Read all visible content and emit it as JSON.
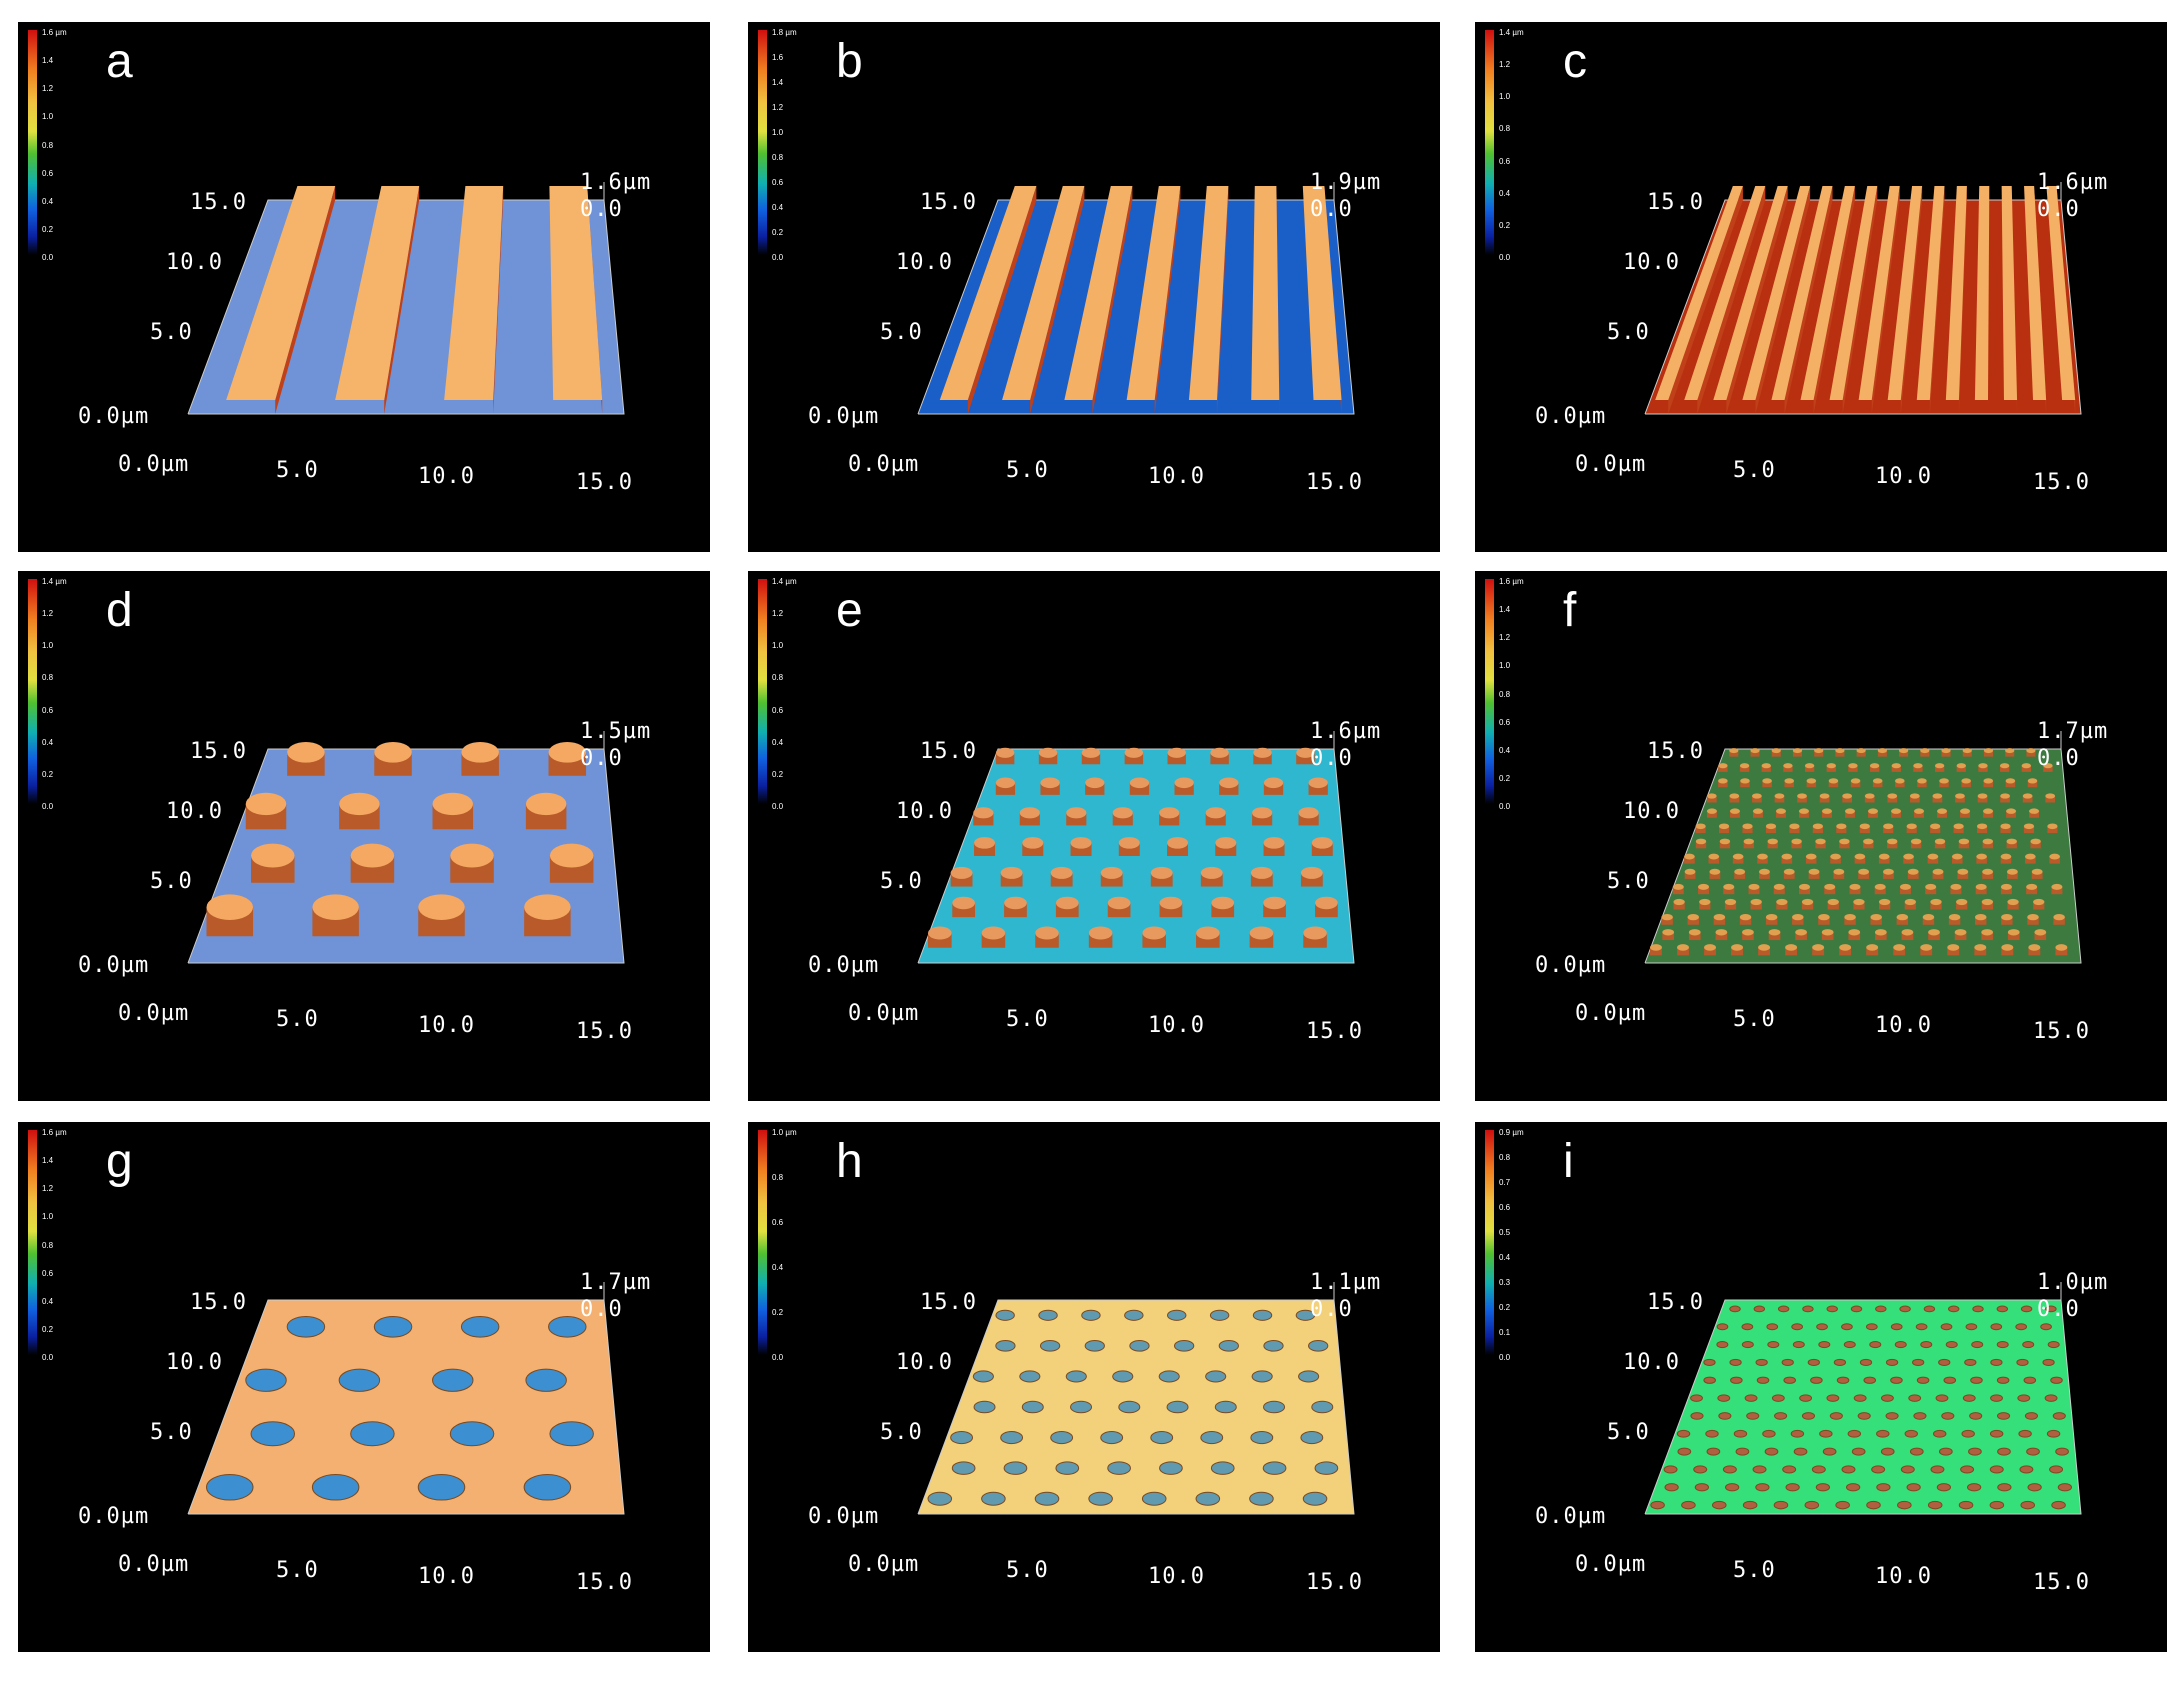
{
  "panels": [
    {
      "letter": "a",
      "scale_top": "1.6 µm",
      "ticks": [
        "1.4",
        "1.2",
        "1.0",
        "0.8",
        "0.6",
        "0.4",
        "0.2",
        "0.0"
      ],
      "z_top": "1.6µm",
      "z_zero": "0.0",
      "y_labels": [
        "15.0",
        "10.0",
        "5.0",
        "0.0µm"
      ],
      "x_labels": [
        "0.0µm",
        "5.0",
        "10.0",
        "15.0"
      ],
      "pattern": "stripes",
      "base_color": "#6f93d6",
      "feature_color": "#f5b46a",
      "count": 4
    },
    {
      "letter": "b",
      "scale_top": "1.8 µm",
      "ticks": [
        "1.6",
        "1.4",
        "1.2",
        "1.0",
        "0.8",
        "0.6",
        "0.4",
        "0.2",
        "0.0"
      ],
      "z_top": "1.9µm",
      "z_zero": "0.0",
      "y_labels": [
        "15.0",
        "10.0",
        "5.0",
        "0.0µm"
      ],
      "x_labels": [
        "0.0µm",
        "5.0",
        "10.0",
        "15.0"
      ],
      "pattern": "stripes",
      "base_color": "#1a5fc8",
      "feature_color": "#f4b064",
      "count": 7
    },
    {
      "letter": "c",
      "scale_top": "1.4 µm",
      "ticks": [
        "1.2",
        "1.0",
        "0.8",
        "0.6",
        "0.4",
        "0.2",
        "0.0"
      ],
      "z_top": "1.6µm",
      "z_zero": "0.0",
      "y_labels": [
        "15.0",
        "10.0",
        "5.0",
        "0.0µm"
      ],
      "x_labels": [
        "0.0µm",
        "5.0",
        "10.0",
        "15.0"
      ],
      "pattern": "stripes",
      "base_color": "#b83010",
      "feature_color": "#f4b064",
      "count": 15
    },
    {
      "letter": "d",
      "scale_top": "1.4 µm",
      "ticks": [
        "1.2",
        "1.0",
        "0.8",
        "0.6",
        "0.4",
        "0.2",
        "0.0"
      ],
      "z_top": "1.5µm",
      "z_zero": "0.0",
      "y_labels": [
        "15.0",
        "10.0",
        "5.0",
        "0.0µm"
      ],
      "x_labels": [
        "0.0µm",
        "5.0",
        "10.0",
        "15.0"
      ],
      "pattern": "pillars",
      "base_color": "#6f93d6",
      "feature_color": "#f4a862",
      "count": 4
    },
    {
      "letter": "e",
      "scale_top": "1.4 µm",
      "ticks": [
        "1.2",
        "1.0",
        "0.8",
        "0.6",
        "0.4",
        "0.2",
        "0.0"
      ],
      "z_top": "1.6µm",
      "z_zero": "0.0",
      "y_labels": [
        "15.0",
        "10.0",
        "5.0",
        "0.0µm"
      ],
      "x_labels": [
        "0.0µm",
        "5.0",
        "10.0",
        "15.0"
      ],
      "pattern": "pillars",
      "base_color": "#2fb7cf",
      "feature_color": "#e89a5e",
      "count": 8
    },
    {
      "letter": "f",
      "scale_top": "1.6 µm",
      "ticks": [
        "1.4",
        "1.2",
        "1.0",
        "0.8",
        "0.6",
        "0.4",
        "0.2",
        "0.0"
      ],
      "z_top": "1.7µm",
      "z_zero": "0.0",
      "y_labels": [
        "15.0",
        "10.0",
        "5.0",
        "0.0µm"
      ],
      "x_labels": [
        "0.0µm",
        "5.0",
        "10.0",
        "15.0"
      ],
      "pattern": "pillars",
      "base_color": "#3c7a40",
      "feature_color": "#e0a050",
      "count": 16
    },
    {
      "letter": "g",
      "scale_top": "1.6 µm",
      "ticks": [
        "1.4",
        "1.2",
        "1.0",
        "0.8",
        "0.6",
        "0.4",
        "0.2",
        "0.0"
      ],
      "z_top": "1.7µm",
      "z_zero": "0.0",
      "y_labels": [
        "15.0",
        "10.0",
        "5.0",
        "0.0µm"
      ],
      "x_labels": [
        "0.0µm",
        "5.0",
        "10.0",
        "15.0"
      ],
      "pattern": "holes",
      "base_color": "#f3b071",
      "feature_color": "#3c8fd0",
      "count": 4
    },
    {
      "letter": "h",
      "scale_top": "1.0 µm",
      "ticks": [
        "0.8",
        "0.6",
        "0.4",
        "0.2",
        "0.0"
      ],
      "z_top": "1.1µm",
      "z_zero": "0.0",
      "y_labels": [
        "15.0",
        "10.0",
        "5.0",
        "0.0µm"
      ],
      "x_labels": [
        "0.0µm",
        "5.0",
        "10.0",
        "15.0"
      ],
      "pattern": "holes",
      "base_color": "#f3d07a",
      "feature_color": "#5f9ab0",
      "count": 8
    },
    {
      "letter": "i",
      "scale_top": "0.9 µm",
      "ticks": [
        "0.8",
        "0.7",
        "0.6",
        "0.5",
        "0.4",
        "0.3",
        "0.2",
        "0.1",
        "0.0"
      ],
      "z_top": "1.0µm",
      "z_zero": "0.0",
      "y_labels": [
        "15.0",
        "10.0",
        "5.0",
        "0.0µm"
      ],
      "x_labels": [
        "0.0µm",
        "5.0",
        "10.0",
        "15.0"
      ],
      "pattern": "holes",
      "base_color": "#35e07a",
      "feature_color": "#b06040",
      "count": 14
    }
  ]
}
